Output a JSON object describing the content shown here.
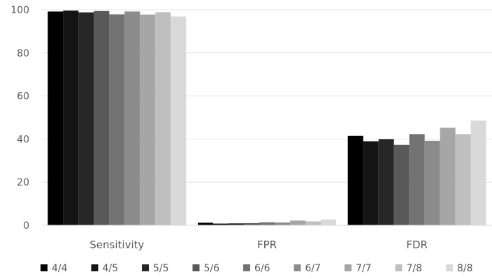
{
  "chart_data": {
    "type": "bar",
    "categories": [
      "Sensitivity",
      "FPR",
      "FDR"
    ],
    "ylim": [
      0,
      100
    ],
    "yticks": [
      0,
      20,
      40,
      60,
      80,
      100
    ],
    "grid": true,
    "legend_position": "bottom",
    "series": [
      {
        "name": "4/4",
        "color": "#000000",
        "values": [
          99.2,
          1.2,
          41.5
        ]
      },
      {
        "name": "4/5",
        "color": "#141414",
        "values": [
          99.6,
          0.8,
          39.0
        ]
      },
      {
        "name": "5/5",
        "color": "#262626",
        "values": [
          98.8,
          0.9,
          40.0
        ]
      },
      {
        "name": "5/6",
        "color": "#595959",
        "values": [
          99.4,
          1.0,
          37.3
        ]
      },
      {
        "name": "6/6",
        "color": "#737373",
        "values": [
          97.9,
          1.4,
          42.3
        ]
      },
      {
        "name": "6/7",
        "color": "#8c8c8c",
        "values": [
          99.2,
          1.3,
          39.2
        ]
      },
      {
        "name": "7/7",
        "color": "#a6a6a6",
        "values": [
          97.8,
          2.2,
          45.3
        ]
      },
      {
        "name": "7/8",
        "color": "#bfbfbf",
        "values": [
          98.9,
          1.8,
          42.3
        ]
      },
      {
        "name": "8/8",
        "color": "#d9d9d9",
        "values": [
          96.9,
          2.7,
          48.6
        ]
      }
    ]
  }
}
